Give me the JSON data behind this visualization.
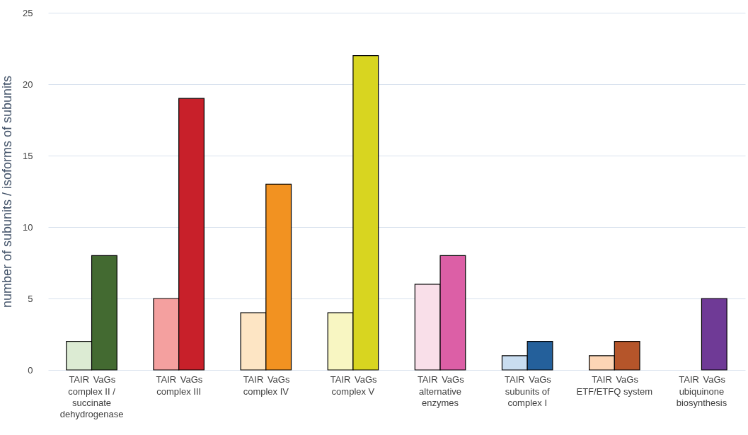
{
  "chart_data": {
    "type": "bar",
    "ylabel": "number of subunits / isoforms of subunits",
    "categories": [
      "complex II / succinate dehydrogenase",
      "complex III",
      "complex IV",
      "complex V",
      "alternative enzymes",
      "subunits of complex I",
      "ETF/ETFQ system",
      "ubiquinone biosynthesis"
    ],
    "series": [
      {
        "name": "TAIR",
        "values": [
          2,
          5,
          4,
          4,
          6,
          1,
          1,
          null
        ],
        "colors": [
          "#dcebd3",
          "#f4a09f",
          "#fde5c4",
          "#f8f6c2",
          "#f9dfe9",
          "#c9ddf0",
          "#fcd5b5",
          "#e0d0ea"
        ]
      },
      {
        "name": "VaGs",
        "values": [
          8,
          19,
          13,
          22,
          8,
          2,
          2,
          5
        ],
        "colors": [
          "#436a31",
          "#c8202a",
          "#f29221",
          "#d8d520",
          "#dc5fa6",
          "#24609b",
          "#b5552a",
          "#6f3a96"
        ]
      }
    ],
    "ylim": [
      0,
      25
    ],
    "yticks": [
      0,
      5,
      10,
      15,
      20,
      25
    ],
    "grid": "y"
  }
}
